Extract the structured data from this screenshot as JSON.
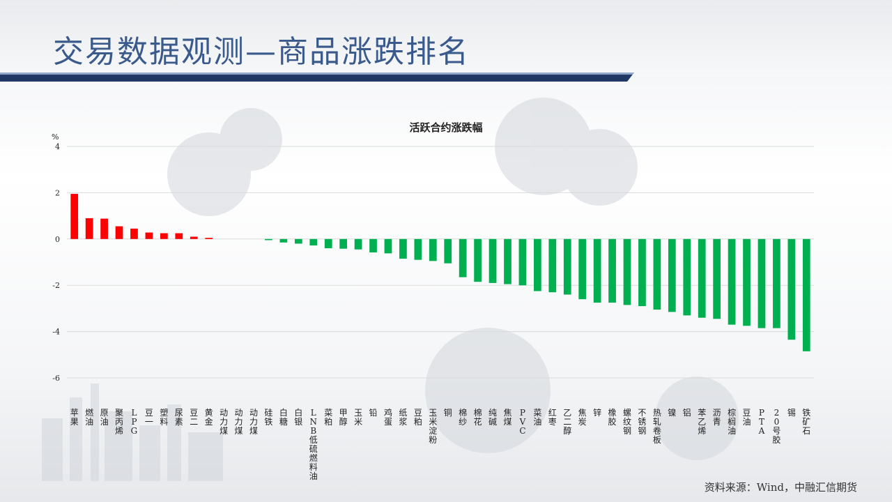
{
  "page": {
    "title": "交易数据观测—商品涨跌排名",
    "source": "资料来源：Wind，中融汇信期货"
  },
  "colors": {
    "up": "#ff0000",
    "down": "#00b050",
    "title": "#3a5a8c",
    "band": "#1f3864"
  },
  "chart_data": {
    "type": "bar",
    "title": "活跃合约涨跌幅",
    "ylabel": "%",
    "ylim": [
      -6,
      4
    ],
    "yticks": [
      4,
      2,
      0,
      -2,
      -4,
      -6
    ],
    "grid": true,
    "categories": [
      "苹果",
      "燃油",
      "原油",
      "聚丙烯",
      "LPG",
      "豆一",
      "塑料",
      "尿素",
      "豆二",
      "黄金",
      "动力煤",
      "动力煤",
      "动力煤",
      "硅铁",
      "白糖",
      "白银",
      "LNB低硫燃料油",
      "菜粕",
      "甲醇",
      "玉米",
      "铅",
      "鸡蛋",
      "纸浆",
      "豆粕",
      "玉米淀粉",
      "铜",
      "棉纱",
      "棉花",
      "纯碱",
      "焦煤",
      "PVC",
      "菜油",
      "红枣",
      "乙二醇",
      "焦炭",
      "锌",
      "橡胶",
      "螺纹钢",
      "不锈钢",
      "热轧卷板",
      "镍",
      "铝",
      "苯乙烯",
      "沥青",
      "棕榈油",
      "豆油",
      "PTA",
      "20号胶",
      "锡",
      "铁矿石"
    ],
    "values": [
      1.95,
      0.9,
      0.88,
      0.55,
      0.45,
      0.28,
      0.25,
      0.25,
      0.1,
      0.05,
      0,
      0,
      0,
      -0.05,
      -0.15,
      -0.2,
      -0.28,
      -0.4,
      -0.42,
      -0.45,
      -0.58,
      -0.62,
      -0.85,
      -0.9,
      -0.95,
      -1.05,
      -1.65,
      -1.85,
      -1.9,
      -1.95,
      -2.0,
      -2.25,
      -2.3,
      -2.4,
      -2.6,
      -2.75,
      -2.75,
      -2.85,
      -2.9,
      -3.05,
      -3.15,
      -3.3,
      -3.4,
      -3.45,
      -3.7,
      -3.75,
      -3.85,
      -3.85,
      -4.35,
      -4.85
    ]
  }
}
